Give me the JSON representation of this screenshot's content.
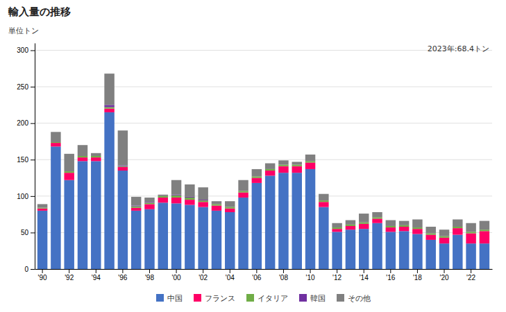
{
  "chart_data": {
    "type": "bar",
    "stacked": true,
    "title": "輸入量の推移",
    "ylabel": "単位トン",
    "annotation": "2023年:68.4トン",
    "categories": [
      "'90",
      null,
      "'92",
      null,
      "'94",
      null,
      "'96",
      null,
      "'98",
      null,
      "'00",
      null,
      "'02",
      null,
      "'04",
      null,
      "'06",
      null,
      "'08",
      null,
      "'10",
      null,
      "'12",
      null,
      "'14",
      null,
      "'16",
      null,
      "'18",
      null,
      "'20",
      null,
      "'22",
      null
    ],
    "series": [
      {
        "name": "中国",
        "color": "#4472C4",
        "values": [
          80,
          168,
          122,
          148,
          148,
          215,
          135,
          80,
          82,
          91,
          90,
          88,
          85,
          80,
          78,
          98,
          118,
          128,
          132,
          132,
          137,
          85,
          51,
          54,
          55,
          63,
          51,
          52,
          48,
          40,
          35,
          47,
          35,
          35
        ]
      },
      {
        "name": "フランス",
        "color": "#FF0066",
        "values": [
          3,
          5,
          10,
          5,
          5,
          5,
          5,
          4,
          7,
          7,
          8,
          7,
          7,
          7,
          5,
          7,
          7,
          7,
          9,
          9,
          9,
          7,
          4,
          5,
          7,
          6,
          6,
          6,
          7,
          7,
          8,
          9,
          14,
          17
        ]
      },
      {
        "name": "イタリア",
        "color": "#70AD47",
        "values": [
          1,
          1,
          2,
          2,
          2,
          2,
          1,
          2,
          2,
          2,
          3,
          3,
          2,
          2,
          2,
          2,
          2,
          2,
          2,
          2,
          2,
          2,
          2,
          2,
          2,
          2,
          2,
          2,
          2,
          2,
          2,
          2,
          2,
          2
        ]
      },
      {
        "name": "韓国",
        "color": "#7030A0",
        "values": [
          0,
          0,
          0,
          0,
          0,
          3,
          1,
          1,
          1,
          0,
          1,
          1,
          1,
          0,
          0,
          0,
          0,
          0,
          0,
          0,
          0,
          0,
          0,
          0,
          0,
          0,
          0,
          0,
          0,
          0,
          0,
          0,
          0,
          0
        ]
      },
      {
        "name": "その他",
        "color": "#808080",
        "values": [
          5,
          14,
          24,
          15,
          4,
          43,
          48,
          12,
          6,
          2,
          20,
          17,
          17,
          4,
          8,
          15,
          10,
          8,
          6,
          4,
          9,
          9,
          6,
          6,
          12,
          7,
          8,
          6,
          11,
          9,
          9,
          10,
          12,
          12
        ]
      }
    ],
    "ylim": [
      0,
      310
    ],
    "yticks": [
      0,
      50,
      100,
      150,
      200,
      250,
      300
    ],
    "grid": true,
    "legend": "bottom"
  }
}
